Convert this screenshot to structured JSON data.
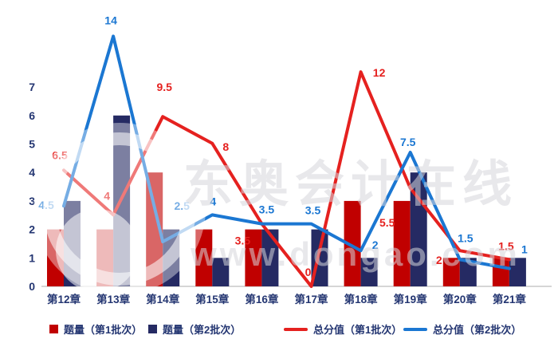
{
  "watermark": {
    "brand_text": "东奥会计在线",
    "url_text": "www.dongao.com"
  },
  "chart_data": {
    "type": "combo-bar-line",
    "title": "",
    "categories": [
      "第12章",
      "第13章",
      "第14章",
      "第15章",
      "第16章",
      "第17章",
      "第18章",
      "第19章",
      "第20章",
      "第21章"
    ],
    "series": [
      {
        "name": "题量（第1批次）",
        "type": "bar",
        "axis": "primary",
        "color": "#C00000",
        "values": [
          2,
          2,
          4,
          2,
          2,
          0,
          3,
          3,
          1,
          1
        ]
      },
      {
        "name": "题量（第2批次）",
        "type": "bar",
        "axis": "primary",
        "color": "#252A63",
        "values": [
          3,
          6,
          2,
          1,
          2,
          2,
          1,
          4,
          1,
          1
        ]
      },
      {
        "name": "总分值（第1批次）",
        "type": "line",
        "axis": "secondary",
        "color": "#E5211F",
        "values": [
          6.5,
          4,
          9.5,
          8,
          3.5,
          0,
          12,
          5.5,
          2,
          1.5
        ]
      },
      {
        "name": "总分值（第2批次）",
        "type": "line",
        "axis": "secondary",
        "color": "#1B77D2",
        "values": [
          4.5,
          14,
          2.5,
          4,
          3.5,
          3.5,
          2,
          7.5,
          1.5,
          1
        ]
      }
    ],
    "y_axis": {
      "ticks": [
        0,
        1,
        2,
        3,
        4,
        5,
        6,
        7
      ],
      "label_color": "#243672",
      "axis_line_color": "#C8C8C8"
    },
    "secondary_axis_visible": false,
    "grid": false,
    "data_labels_on_lines": true,
    "legend_position": "bottom",
    "background": "#FFFFFF"
  }
}
